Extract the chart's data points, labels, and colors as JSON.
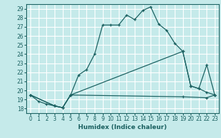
{
  "xlabel": "Humidex (Indice chaleur)",
  "bg_color": "#c5eaea",
  "line_color": "#1a6060",
  "grid_color": "#ffffff",
  "xlim": [
    -0.5,
    23.5
  ],
  "ylim": [
    17.5,
    29.5
  ],
  "xticks": [
    0,
    1,
    2,
    3,
    4,
    5,
    6,
    7,
    8,
    9,
    10,
    11,
    12,
    13,
    14,
    15,
    16,
    17,
    18,
    19,
    20,
    21,
    22,
    23
  ],
  "yticks": [
    18,
    19,
    20,
    21,
    22,
    23,
    24,
    25,
    26,
    27,
    28,
    29
  ],
  "line1_x": [
    0,
    1,
    2,
    3,
    4,
    5,
    6,
    7,
    8,
    9,
    10,
    11,
    12,
    13,
    14,
    15,
    16,
    17,
    18,
    19,
    20,
    21,
    22,
    23
  ],
  "line1_y": [
    19.5,
    18.8,
    18.5,
    18.3,
    18.1,
    19.5,
    21.7,
    22.3,
    24.0,
    27.2,
    27.2,
    27.2,
    28.3,
    27.8,
    28.8,
    29.2,
    27.3,
    26.6,
    25.2,
    24.3,
    20.5,
    20.2,
    19.8,
    19.5
  ],
  "line2_x": [
    0,
    3,
    4,
    5,
    19,
    20,
    21,
    22,
    23
  ],
  "line2_y": [
    19.5,
    18.3,
    18.1,
    19.5,
    24.3,
    20.5,
    20.2,
    22.8,
    19.5
  ],
  "line3_x": [
    0,
    3,
    4,
    5,
    19,
    22,
    23
  ],
  "line3_y": [
    19.5,
    18.3,
    18.1,
    19.5,
    19.3,
    19.2,
    19.5
  ]
}
